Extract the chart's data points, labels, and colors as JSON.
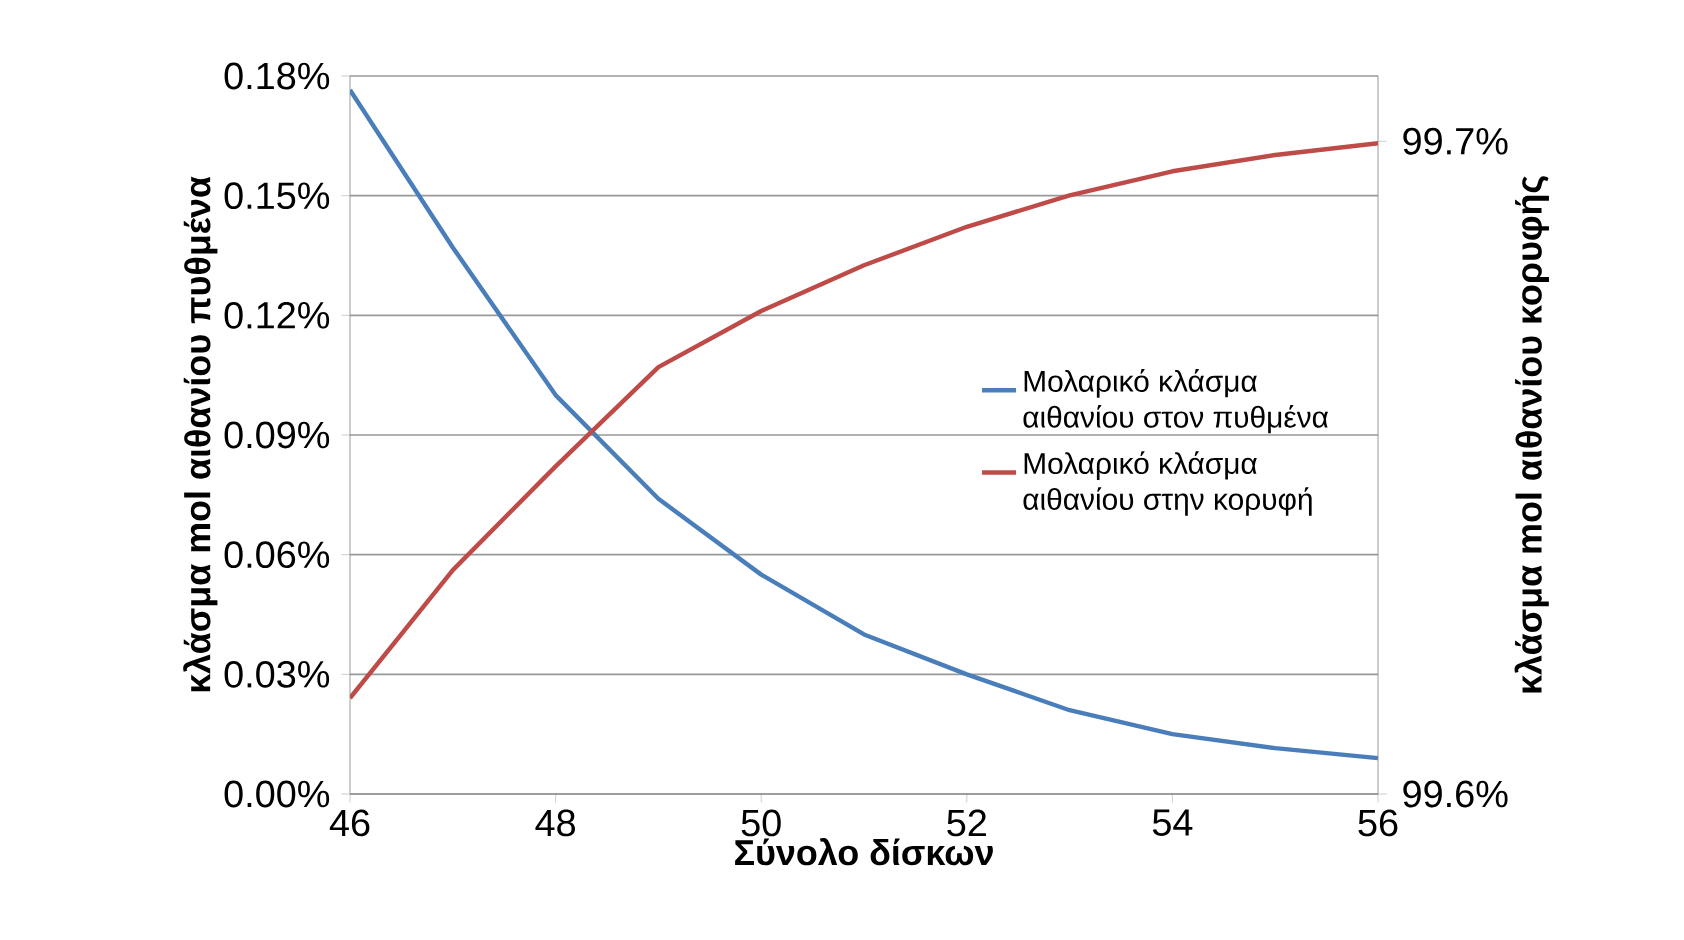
{
  "chart_data": {
    "type": "line",
    "xlabel": "Σύνολο δίσκων",
    "ylabel": "κλάσμα mol αιθανίου πυθμένα",
    "y2label": "κλάσμα mol αιθανίου κορυφής",
    "xlim": [
      46,
      56
    ],
    "xticks": [
      46,
      48,
      50,
      52,
      54,
      56
    ],
    "ylim": [
      0,
      0.18
    ],
    "yticks": [
      {
        "value": 0,
        "label": "0.00%"
      },
      {
        "value": 0.03,
        "label": "0.03%"
      },
      {
        "value": 0.06,
        "label": "0.06%"
      },
      {
        "value": 0.09,
        "label": "0.09%"
      },
      {
        "value": 0.12,
        "label": "0.12%"
      },
      {
        "value": 0.15,
        "label": "0.15%"
      },
      {
        "value": 0.18,
        "label": "0.18%"
      }
    ],
    "y2lim": [
      99.6,
      99.71
    ],
    "y2ticks": [
      {
        "value": 99.6,
        "label": "99.6%"
      },
      {
        "value": 99.7,
        "label": "99.7%"
      }
    ],
    "grid": "y",
    "legend": "right",
    "marker": "none",
    "line_style": "solid",
    "series": [
      {
        "name": "Μολαρικό κλάσμα αιθανίου στον πυθμένα",
        "color": "#4a7ebb",
        "x": [
          46,
          47,
          48,
          49,
          50,
          51,
          52,
          53,
          54,
          55,
          56
        ],
        "values": [
          0.1765,
          0.137,
          0.1,
          0.074,
          0.055,
          0.04,
          0.03,
          0.021,
          0.015,
          0.0115,
          0.009
        ]
      },
      {
        "name": "Μολαρικό κλάσμα αιθανίου στην κορυφή",
        "color": "#be4b48",
        "axis": "y2",
        "x": [
          46,
          47,
          48,
          49,
          50,
          51,
          52,
          53,
          54,
          55,
          56
        ],
        "values": [
          99.6147,
          99.6343,
          99.6502,
          99.6654,
          99.674,
          99.681,
          99.6869,
          99.6917,
          99.6954,
          99.6979,
          99.6997
        ]
      }
    ]
  }
}
